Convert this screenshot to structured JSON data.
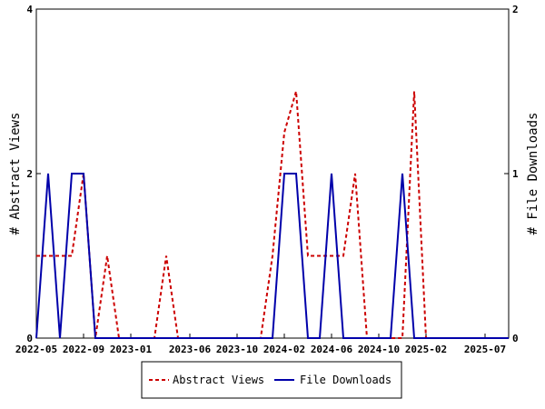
{
  "chart_data": {
    "type": "line",
    "x": [
      "2022-05",
      "2022-06",
      "2022-07",
      "2022-08",
      "2022-09",
      "2022-10",
      "2022-11",
      "2022-12",
      "2023-01",
      "2023-02",
      "2023-03",
      "2023-04",
      "2023-05",
      "2023-06",
      "2023-07",
      "2023-08",
      "2023-09",
      "2023-10",
      "2023-11",
      "2023-12",
      "2024-01",
      "2024-02",
      "2024-03",
      "2024-04",
      "2024-05",
      "2024-06",
      "2024-07",
      "2024-08",
      "2024-09",
      "2024-10",
      "2024-11",
      "2024-12",
      "2025-01",
      "2025-02",
      "2025-03",
      "2025-04",
      "2025-05",
      "2025-06",
      "2025-07",
      "2025-08",
      "2025-09"
    ],
    "x_ticks": [
      "2022-05",
      "2022-09",
      "2023-01",
      "2023-06",
      "2023-10",
      "2024-02",
      "2024-06",
      "2024-10",
      "2025-02",
      "2025-07"
    ],
    "y_left": {
      "label": "# Abstract Views",
      "range": [
        0,
        4
      ],
      "ticks": [
        "0",
        "2",
        "4"
      ]
    },
    "y_right": {
      "label": "# File Downloads",
      "range": [
        0,
        2
      ],
      "ticks": [
        "0",
        "1",
        "2"
      ]
    },
    "series": [
      {
        "name": "Abstract Views",
        "axis": "left",
        "color": "#cc0000",
        "style": "dashed",
        "values": [
          1,
          1,
          1,
          1,
          2,
          0,
          1,
          0,
          0,
          0,
          0,
          1,
          0,
          0,
          0,
          0,
          0,
          0,
          0,
          0,
          1,
          2.5,
          3,
          1,
          1,
          1,
          1,
          2,
          0,
          0,
          0,
          0,
          3,
          0,
          0,
          0,
          0,
          0,
          0,
          0,
          0
        ]
      },
      {
        "name": "File Downloads",
        "axis": "right",
        "color": "#0000aa",
        "style": "solid",
        "values": [
          0,
          1,
          0,
          1,
          1,
          0,
          0,
          0,
          0,
          0,
          0,
          0,
          0,
          0,
          0,
          0,
          0,
          0,
          0,
          0,
          0,
          1,
          1,
          0,
          0,
          1,
          0,
          0,
          0,
          0,
          0,
          1,
          0,
          0,
          0,
          0,
          0,
          0,
          0,
          0,
          0
        ]
      }
    ],
    "grid": false,
    "legend": "bottom"
  }
}
